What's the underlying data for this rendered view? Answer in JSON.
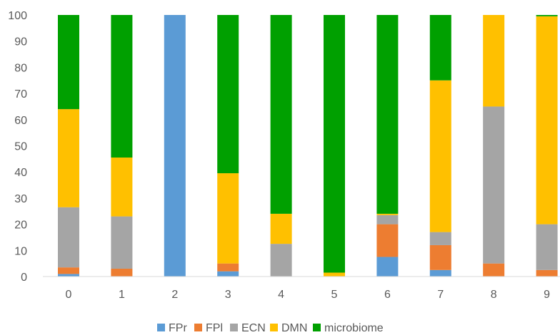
{
  "chart_data": {
    "type": "bar",
    "stacked": true,
    "categories": [
      "0",
      "1",
      "2",
      "3",
      "4",
      "5",
      "6",
      "7",
      "8",
      "9"
    ],
    "ylim": [
      0,
      100
    ],
    "yticks": [
      "0",
      "10",
      "20",
      "30",
      "40",
      "50",
      "60",
      "70",
      "80",
      "90",
      "100"
    ],
    "grid": false,
    "legend_position": "bottom",
    "title": "",
    "xlabel": "",
    "ylabel": "",
    "series": [
      {
        "name": "FPr",
        "color": "#5B9BD5",
        "values": [
          1,
          0,
          100,
          2,
          0,
          0,
          7.5,
          2.5,
          0,
          0
        ]
      },
      {
        "name": "FPl",
        "color": "#ED7D31",
        "values": [
          2.5,
          3,
          0,
          3,
          0,
          0,
          12.5,
          9.5,
          5,
          2.5
        ]
      },
      {
        "name": "ECN",
        "color": "#A5A5A5",
        "values": [
          23,
          20,
          0,
          0,
          12.5,
          0,
          3.5,
          5,
          60,
          17.5
        ]
      },
      {
        "name": "DMN",
        "color": "#FFC000",
        "values": [
          37.5,
          22.5,
          0,
          34.5,
          11.5,
          1.5,
          0.5,
          58,
          35,
          79.5
        ]
      },
      {
        "name": "microbiome",
        "color": "#00A000",
        "values": [
          36,
          54.5,
          0,
          60.5,
          76,
          98.5,
          76,
          25,
          0,
          0.5
        ]
      }
    ]
  }
}
